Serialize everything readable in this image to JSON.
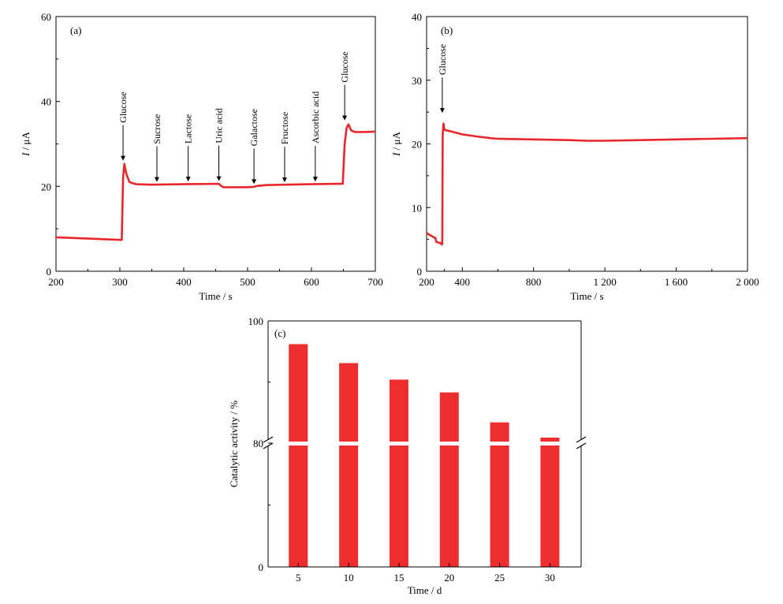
{
  "chart_data": [
    {
      "panel": "(a)",
      "type": "line",
      "xlabel": "Time / s",
      "ylabel": "I / μA",
      "ylabel_italic": "I",
      "ylabel_rest": " / μA",
      "xlim": [
        200,
        700
      ],
      "ylim": [
        0,
        60
      ],
      "xticks": [
        200,
        300,
        400,
        500,
        600,
        700
      ],
      "yticks": [
        0,
        20,
        40,
        60
      ],
      "tick_labels_x": [
        "200",
        "300",
        "400",
        "500",
        "600",
        "700"
      ],
      "tick_labels_y": [
        "0",
        "20",
        "40",
        "60"
      ],
      "color": "#e8262b",
      "x": [
        200,
        300,
        303,
        305,
        307,
        310,
        315,
        325,
        350,
        400,
        455,
        458,
        462,
        470,
        500,
        510,
        515,
        530,
        560,
        600,
        645,
        649,
        652,
        655,
        658,
        662,
        668,
        680,
        700
      ],
      "y": [
        8,
        7.4,
        7.4,
        22,
        25.3,
        23,
        21,
        20.5,
        20.4,
        20.5,
        20.6,
        20.2,
        19.8,
        19.8,
        19.8,
        19.9,
        20.1,
        20.3,
        20.4,
        20.5,
        20.6,
        20.6,
        30,
        33.8,
        34.6,
        33.2,
        32.8,
        32.8,
        32.9
      ],
      "annotations": [
        {
          "label": "Glucose",
          "x": 305,
          "y_tip": 25.5
        },
        {
          "label": "Sucrose",
          "x": 358,
          "y_tip": 20.5
        },
        {
          "label": "Lactose",
          "x": 407,
          "y_tip": 20.6
        },
        {
          "label": "Uric acid",
          "x": 455,
          "y_tip": 20.7
        },
        {
          "label": "Galactose",
          "x": 510,
          "y_tip": 20.0
        },
        {
          "label": "Fructose",
          "x": 558,
          "y_tip": 20.4
        },
        {
          "label": "Ascorbic acid",
          "x": 606,
          "y_tip": 20.6
        },
        {
          "label": "Glucose",
          "x": 652,
          "y_tip": 35.0
        }
      ]
    },
    {
      "panel": "(b)",
      "type": "line",
      "xlabel": "Time / s",
      "ylabel": "I / μA",
      "ylabel_italic": "I",
      "ylabel_rest": " / μA",
      "xlim": [
        200,
        2000
      ],
      "ylim": [
        0,
        40
      ],
      "xticks": [
        200,
        400,
        800,
        1200,
        1600,
        2000
      ],
      "yticks": [
        0,
        10,
        20,
        30,
        40
      ],
      "tick_labels_x": [
        "200",
        "400",
        "800",
        "1 200",
        "1 600",
        "2 000"
      ],
      "tick_labels_y": [
        "0",
        "10",
        "20",
        "30",
        "40"
      ],
      "color": "#e8262b",
      "x": [
        200,
        230,
        250,
        255,
        280,
        285,
        288,
        290,
        295,
        300,
        330,
        400,
        500,
        560,
        600,
        800,
        1000,
        1100,
        1200,
        1400,
        1600,
        1800,
        2000
      ],
      "y": [
        6.0,
        5.5,
        5.2,
        4.6,
        4.4,
        4.2,
        4.3,
        21.5,
        23.2,
        22.2,
        22.0,
        21.5,
        21.1,
        20.9,
        20.8,
        20.7,
        20.6,
        20.5,
        20.5,
        20.6,
        20.7,
        20.8,
        20.9
      ],
      "annotations": [
        {
          "label": "Glucose",
          "x": 288,
          "y_tip": 24.5
        }
      ]
    },
    {
      "panel": "(c)",
      "type": "bar",
      "xlabel": "Time / d",
      "ylabel": "Catalytic activity / %",
      "categories": [
        "5",
        "10",
        "15",
        "20",
        "25",
        "30"
      ],
      "values": [
        96.2,
        93.1,
        90.4,
        88.3,
        83.4,
        80.9
      ],
      "ylim": [
        0,
        100
      ],
      "axis_break": 80,
      "yticks": [
        0,
        80,
        100
      ],
      "tick_labels_y": [
        "0",
        "80",
        "100"
      ],
      "color": "#ee2d2f"
    }
  ]
}
